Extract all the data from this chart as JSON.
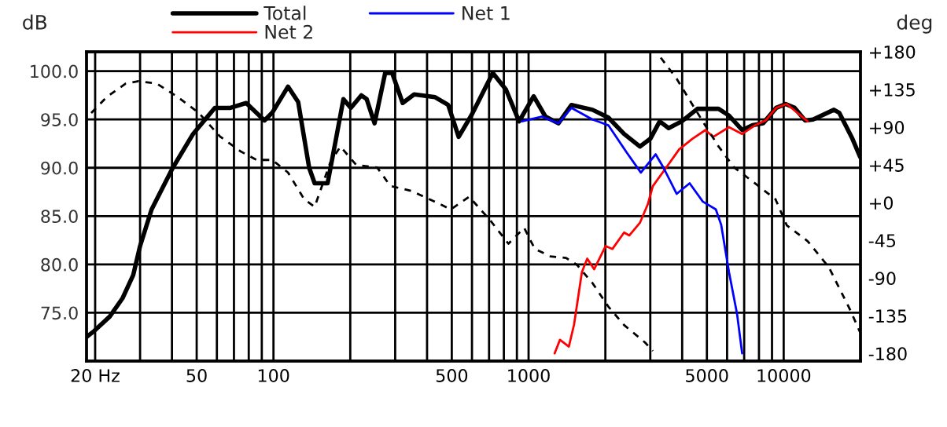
{
  "chart_data": {
    "type": "line",
    "ylabel": "dB",
    "y2label": "deg",
    "log": "x",
    "grid": true,
    "legend": "top",
    "xlim": [
      18.5,
      20000
    ],
    "xticks": [
      {
        "value": 20,
        "label": "20 Hz"
      },
      {
        "value": 30,
        "label": null
      },
      {
        "value": 40,
        "label": null
      },
      50,
      {
        "value": 60,
        "label": null
      },
      {
        "value": 70,
        "label": null
      },
      {
        "value": 80,
        "label": null
      },
      {
        "value": 90,
        "label": null
      },
      100,
      {
        "value": 200,
        "label": null
      },
      {
        "value": 300,
        "label": null
      },
      {
        "value": 400,
        "label": null
      },
      500,
      {
        "value": 600,
        "label": null
      },
      {
        "value": 700,
        "label": null
      },
      {
        "value": 800,
        "label": null
      },
      {
        "value": 900,
        "label": null
      },
      1000,
      {
        "value": 2000,
        "label": null
      },
      {
        "value": 3000,
        "label": null
      },
      {
        "value": 4000,
        "label": null
      },
      5000,
      {
        "value": 6000,
        "label": null
      },
      {
        "value": 7000,
        "label": null
      },
      {
        "value": 8000,
        "label": null
      },
      {
        "value": 9000,
        "label": null
      },
      10000
    ],
    "ylim": [
      70,
      102
    ],
    "yticks": [
      {
        "value": 75,
        "label": "75.0"
      },
      {
        "value": 80,
        "label": "80.0"
      },
      {
        "value": 85,
        "label": "85.0"
      },
      {
        "value": 90,
        "label": "90.0"
      },
      {
        "value": 95,
        "label": "95.0"
      },
      {
        "value": 100,
        "label": "100.0"
      }
    ],
    "y2lim": [
      -189,
      180
    ],
    "y2ticks": [
      {
        "value": 180,
        "label": "+180"
      },
      {
        "value": 135,
        "label": "+135"
      },
      {
        "value": 90,
        "label": "+90"
      },
      {
        "value": 45,
        "label": "+45"
      },
      {
        "value": 0,
        "label": "+0"
      },
      -45,
      -90,
      -135,
      -180
    ],
    "series": [
      {
        "name": "Total",
        "color": "#000000",
        "x": [
          18.5,
          19.8,
          22.8,
          25.6,
          28.2,
          30,
          33.3,
          40.3,
          48.4,
          58.9,
          67.8,
          78.2,
          92.2,
          98.9,
          114,
          125,
          138,
          145,
          163,
          175,
          188,
          201,
          221,
          232,
          249,
          274,
          292,
          321,
          356,
          430,
          484,
          532,
          599,
          724,
          815,
          918,
          1047,
          1164,
          1309,
          1473,
          1781,
          2054,
          2368,
          2731,
          3000,
          3266,
          3540,
          3984,
          4591,
          5556,
          6105,
          6873,
          7551,
          8300,
          9350,
          10180,
          11040,
          12140,
          13030,
          15740,
          16500,
          18600,
          19950
        ],
        "values": [
          72.5,
          73.1,
          74.6,
          76.5,
          78.9,
          81.9,
          85.7,
          90.0,
          93.5,
          96.2,
          96.2,
          96.7,
          94.9,
          95.7,
          98.4,
          96.8,
          90.0,
          88.4,
          88.4,
          92.7,
          97.1,
          96.2,
          97.5,
          97.1,
          94.6,
          99.8,
          99.8,
          96.7,
          97.6,
          97.3,
          96.5,
          93.2,
          95.5,
          99.8,
          98.1,
          94.8,
          97.4,
          95.3,
          94.6,
          96.5,
          96.0,
          95.2,
          93.5,
          92.2,
          93.0,
          94.8,
          94.1,
          94.8,
          96.1,
          96.1,
          95.4,
          93.9,
          94.4,
          94.6,
          96.2,
          96.6,
          96.2,
          94.9,
          95.0,
          96.0,
          95.7,
          93.0,
          91.1
        ]
      },
      {
        "name": "Net 2",
        "color": "#ff0000",
        "x": [
          1265,
          1327,
          1439,
          1508,
          1618,
          1698,
          1807,
          2005,
          2132,
          2368,
          2483,
          2731,
          2931,
          3070,
          3459,
          3891,
          4385,
          4932,
          5297,
          6105,
          6873,
          7727,
          8506,
          9350,
          10280,
          12420
        ],
        "values": [
          70.8,
          72.2,
          71.5,
          73.8,
          79.2,
          80.6,
          79.5,
          81.9,
          81.6,
          83.3,
          83.0,
          84.3,
          86.2,
          88.1,
          90.0,
          91.9,
          93.0,
          93.9,
          93.2,
          94.2,
          93.5,
          94.4,
          94.9,
          96.2,
          96.6,
          94.8
        ]
      },
      {
        "name": "Net 1",
        "color": "#0000ff",
        "x": [
          940,
          1127,
          1309,
          1473,
          1781,
          2054,
          2421,
          2755,
          3148,
          3381,
          3805,
          4279,
          4820,
          5420,
          5688,
          6105,
          6563,
          6873
        ],
        "values": [
          94.8,
          95.3,
          94.6,
          96.2,
          95.0,
          94.4,
          91.6,
          89.5,
          91.4,
          90.0,
          87.3,
          88.4,
          86.5,
          85.7,
          84.1,
          79.2,
          74.9,
          70.8
        ]
      },
      {
        "color": "#000000",
        "axis": "y2",
        "line_style": "dashed",
        "x": [
          19.3,
          22.2,
          26.3,
          29.6,
          34.9,
          42.2,
          51,
          61.7,
          74.5,
          85.9,
          98.9,
          114,
          132,
          145,
          167,
          183,
          211,
          255,
          287,
          347,
          430,
          496,
          585,
          707,
          834,
          961,
          1057,
          1217,
          1403,
          1545,
          1781,
          2054,
          2368,
          2865,
          3070,
          3100,
          3297,
          3805,
          4385,
          4932,
          5556,
          6397,
          7727,
          9290,
          10280,
          12420,
          15030,
          18160,
          19950
        ],
        "values": [
          107,
          126,
          142,
          145,
          142,
          126,
          107,
          79,
          61,
          51,
          51,
          36,
          4,
          -5,
          48,
          67,
          45,
          42,
          20,
          14,
          1,
          -8,
          7,
          -21,
          -49,
          -30,
          -55,
          -64,
          -66,
          -74,
          -96,
          -124,
          -146,
          -167,
          -177,
          null,
          173,
          148,
          117,
          92,
          67,
          42,
          23,
          4,
          -27,
          -46,
          -77,
          -127,
          -155
        ]
      }
    ]
  }
}
